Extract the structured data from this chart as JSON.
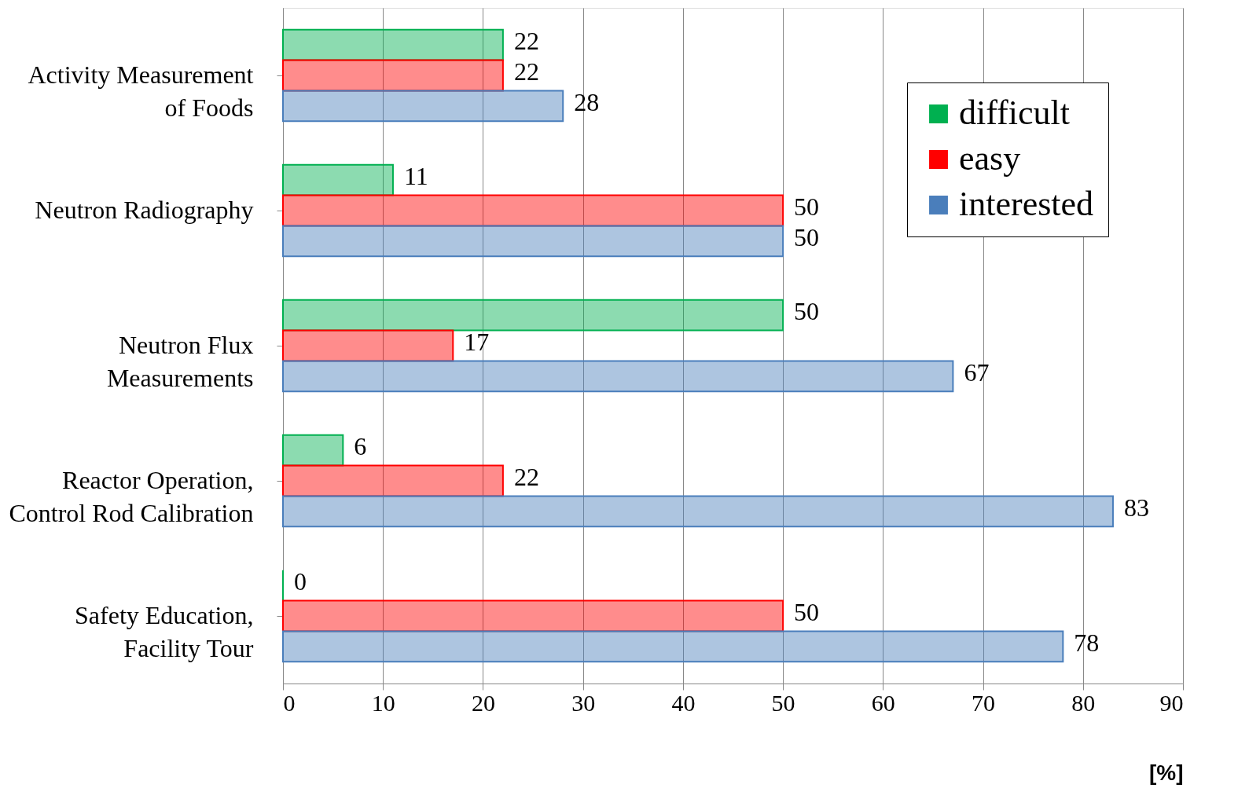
{
  "chart_data": {
    "type": "bar",
    "orientation": "horizontal",
    "xlabel": "[%]",
    "categories": [
      "Activity Measurement\nof Foods",
      "Neutron Radiography",
      "Neutron Flux\nMeasurements",
      "Reactor Operation,\nControl Rod Calibration",
      "Safety Education,\nFacility Tour"
    ],
    "series": [
      {
        "name": "difficult",
        "color": "#00b050",
        "values": [
          22,
          11,
          50,
          6,
          0
        ]
      },
      {
        "name": "easy",
        "color": "#ff0000",
        "values": [
          22,
          50,
          17,
          22,
          50
        ]
      },
      {
        "name": "interested",
        "color": "#4a7ebb",
        "values": [
          28,
          50,
          67,
          83,
          78
        ]
      }
    ],
    "xlim": [
      0,
      90
    ],
    "xticks": [
      0,
      10,
      20,
      30,
      40,
      50,
      60,
      70,
      80,
      90
    ],
    "grid": "x",
    "legend": "top right",
    "data_labels": true
  }
}
